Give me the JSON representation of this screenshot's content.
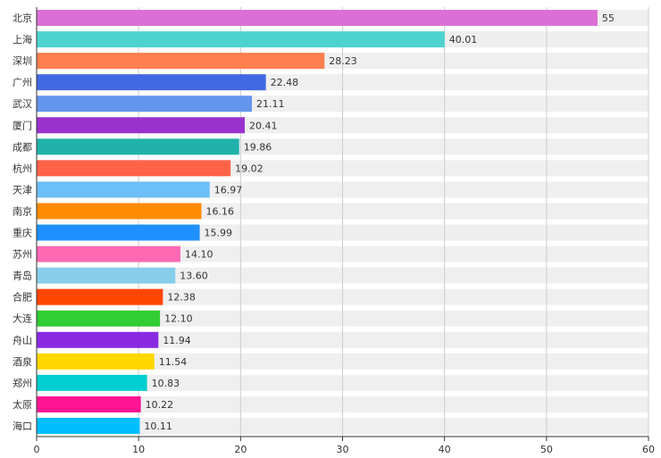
{
  "chart_data": {
    "type": "bar",
    "orientation": "horizontal",
    "categories": [
      "北京",
      "上海",
      "深圳",
      "广州",
      "武汉",
      "厦门",
      "成都",
      "杭州",
      "天津",
      "南京",
      "重庆",
      "苏州",
      "青岛",
      "合肥",
      "大连",
      "舟山",
      "酒泉",
      "郑州",
      "太原",
      "海口"
    ],
    "values": [
      55,
      40.01,
      28.23,
      22.48,
      21.11,
      20.41,
      19.86,
      19.02,
      16.97,
      16.16,
      15.99,
      14.1,
      13.6,
      12.38,
      12.1,
      11.94,
      11.54,
      10.83,
      10.22,
      10.11
    ],
    "value_labels": [
      "55",
      "40.01",
      "28.23",
      "22.48",
      "21.11",
      "20.41",
      "19.86",
      "19.02",
      "16.97",
      "16.16",
      "15.99",
      "14.10",
      "13.60",
      "12.38",
      "12.10",
      "11.94",
      "11.54",
      "10.83",
      "10.22",
      "10.11"
    ],
    "colors": [
      "#da70d6",
      "#4dd3cf",
      "#ff7f50",
      "#4169e1",
      "#6495ed",
      "#9932cc",
      "#20b2aa",
      "#ff6347",
      "#6cbff8",
      "#ff8c00",
      "#1e90ff",
      "#ff69b4",
      "#87ceeb",
      "#ff4500",
      "#32cd32",
      "#8a2be2",
      "#ffd700",
      "#00ced1",
      "#ff1493",
      "#00bfff"
    ],
    "xlim": [
      0,
      60
    ],
    "x_ticks": [
      0,
      10,
      20,
      30,
      40,
      50,
      60
    ],
    "x_tick_labels": [
      "0",
      "10",
      "20",
      "30",
      "40",
      "50",
      "60"
    ],
    "grid": true,
    "background_bar_color": "#efefef",
    "title": "",
    "xlabel": "",
    "ylabel": ""
  }
}
